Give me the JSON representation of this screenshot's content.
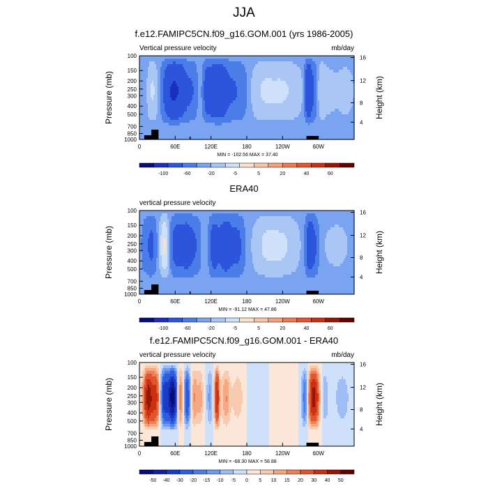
{
  "page": {
    "title": "JJA"
  },
  "chart_data": [
    {
      "type": "heatmap",
      "title": "f.e12.FAMIPC5CN.f09_g16.GOM.001 (yrs 1986-2005)",
      "left_label": "Vertical pressure velocity",
      "right_label": "mb/day",
      "ylabel": "Pressure (mb)",
      "ylabel_right": "Height (km)",
      "xticks": [
        "0",
        "60E",
        "120E",
        "180",
        "120W",
        "60W"
      ],
      "yticks": [
        "100",
        "150",
        "200",
        "250",
        "300",
        "400",
        "500",
        "700",
        "850",
        "1000"
      ],
      "yticks_right": [
        "16",
        "12",
        "8",
        "4"
      ],
      "xlim": [
        0,
        360
      ],
      "ylim": [
        1000,
        100
      ],
      "stats": "MIN = -102.56   MAX = 37.40",
      "levels": [
        "-100",
        "-60",
        "-20",
        "-5",
        "5",
        "20",
        "40",
        "60"
      ],
      "colors": [
        "#0a0a7a",
        "#1a2ec0",
        "#2d55dc",
        "#4a7de8",
        "#7aa3f0",
        "#a9c6f5",
        "#cfe0fa",
        "#fbe0d0",
        "#f8c4a6",
        "#f4a07a",
        "#ec7b52",
        "#e2552e",
        "#c92f12",
        "#9a1408",
        "#640000"
      ],
      "features": [
        {
          "lon": 12,
          "val": -8,
          "w": 5
        },
        {
          "lon": 22,
          "val": 26,
          "w": 8
        },
        {
          "lon": 40,
          "val": 8,
          "w": 4
        },
        {
          "lon": 55,
          "val": -60,
          "w": 13
        },
        {
          "lon": 72,
          "val": -20,
          "w": 10
        },
        {
          "lon": 90,
          "val": -15,
          "w": 6
        },
        {
          "lon": 102,
          "val": 4,
          "w": 4
        },
        {
          "lon": 115,
          "val": -40,
          "w": 6
        },
        {
          "lon": 125,
          "val": -25,
          "w": 4
        },
        {
          "lon": 135,
          "val": -50,
          "w": 7
        },
        {
          "lon": 155,
          "val": -22,
          "w": 14
        },
        {
          "lon": 175,
          "val": -6,
          "w": 8
        },
        {
          "lon": 205,
          "val": 15,
          "w": 14
        },
        {
          "lon": 240,
          "val": 22,
          "w": 22
        },
        {
          "lon": 283,
          "val": -55,
          "w": 4
        },
        {
          "lon": 292,
          "val": -20,
          "w": 6
        },
        {
          "lon": 305,
          "val": 18,
          "w": 5
        },
        {
          "lon": 318,
          "val": 8,
          "w": 8
        },
        {
          "lon": 345,
          "val": 10,
          "w": 12
        }
      ]
    },
    {
      "type": "heatmap",
      "title": "ERA40",
      "left_label": "vertical pressure velocity",
      "right_label": "",
      "ylabel": "Pressure (mb)",
      "ylabel_right": "Height (km)",
      "xticks": [
        "0",
        "60E",
        "120E",
        "180",
        "120W",
        "60W"
      ],
      "yticks": [
        "100",
        "150",
        "200",
        "250",
        "300",
        "400",
        "500",
        "700",
        "850",
        "1000"
      ],
      "yticks_right": [
        "16",
        "12",
        "8",
        "4"
      ],
      "xlim": [
        0,
        360
      ],
      "ylim": [
        1000,
        100
      ],
      "stats": "MIN = -91.12   MAX = 47.86",
      "levels": [
        "-100",
        "-60",
        "-20",
        "-5",
        "5",
        "20",
        "40",
        "60"
      ],
      "colors": [
        "#0a0a7a",
        "#1a2ec0",
        "#2d55dc",
        "#4a7de8",
        "#7aa3f0",
        "#a9c6f5",
        "#cfe0fa",
        "#fbe0d0",
        "#f8c4a6",
        "#f4a07a",
        "#ec7b52",
        "#e2552e",
        "#c92f12",
        "#9a1408",
        "#640000"
      ],
      "features": [
        {
          "lon": 8,
          "val": -10,
          "w": 5
        },
        {
          "lon": 20,
          "val": -25,
          "w": 6
        },
        {
          "lon": 42,
          "val": 45,
          "w": 5
        },
        {
          "lon": 62,
          "val": -30,
          "w": 8
        },
        {
          "lon": 80,
          "val": -35,
          "w": 8
        },
        {
          "lon": 96,
          "val": -15,
          "w": 6
        },
        {
          "lon": 110,
          "val": 5,
          "w": 4
        },
        {
          "lon": 125,
          "val": -35,
          "w": 6
        },
        {
          "lon": 145,
          "val": -45,
          "w": 8
        },
        {
          "lon": 165,
          "val": -25,
          "w": 8
        },
        {
          "lon": 210,
          "val": 18,
          "w": 14
        },
        {
          "lon": 240,
          "val": 22,
          "w": 18
        },
        {
          "lon": 285,
          "val": -40,
          "w": 5
        },
        {
          "lon": 295,
          "val": -20,
          "w": 5
        },
        {
          "lon": 330,
          "val": 8,
          "w": 20
        }
      ]
    },
    {
      "type": "heatmap",
      "title": "f.e12.FAMIPC5CN.f09_g16.GOM.001 - ERA40",
      "left_label": "vertical pressure velocity",
      "right_label": "mb/day",
      "ylabel": "Pressure (mb)",
      "ylabel_right": "Height (km)",
      "xticks": [
        "0",
        "60E",
        "120E",
        "180",
        "120W",
        "60W"
      ],
      "yticks": [
        "100",
        "150",
        "200",
        "250",
        "300",
        "400",
        "500",
        "700",
        "850",
        "1000"
      ],
      "yticks_right": [
        "16",
        "12",
        "8",
        "4"
      ],
      "xlim": [
        0,
        360
      ],
      "ylim": [
        1000,
        100
      ],
      "stats": "MIN = -68.30   MAX = 58.88",
      "levels": [
        "-50",
        "-40",
        "-30",
        "-20",
        "-15",
        "-10",
        "-5",
        "0",
        "5",
        "10",
        "15",
        "20",
        "30",
        "40",
        "50"
      ],
      "colors": [
        "#0a0a7a",
        "#12209e",
        "#1a3cc4",
        "#2d5ddc",
        "#4a7de8",
        "#6f9af0",
        "#9fbdf5",
        "#cfe0fa",
        "#fbe6d8",
        "#f8cbb0",
        "#f4a882",
        "#ec8058",
        "#e0552e",
        "#c83010",
        "#961408",
        "#600000"
      ],
      "features": [
        {
          "lon": 15,
          "val": 45,
          "w": 6
        },
        {
          "lon": 28,
          "val": 30,
          "w": 5
        },
        {
          "lon": 42,
          "val": -35,
          "w": 5
        },
        {
          "lon": 56,
          "val": -55,
          "w": 6
        },
        {
          "lon": 68,
          "val": 25,
          "w": 4
        },
        {
          "lon": 80,
          "val": -30,
          "w": 4
        },
        {
          "lon": 92,
          "val": 15,
          "w": 4
        },
        {
          "lon": 102,
          "val": 12,
          "w": 4
        },
        {
          "lon": 118,
          "val": -12,
          "w": 4
        },
        {
          "lon": 130,
          "val": 40,
          "w": 3
        },
        {
          "lon": 145,
          "val": 15,
          "w": 5
        },
        {
          "lon": 165,
          "val": 8,
          "w": 8
        },
        {
          "lon": 200,
          "val": -5,
          "w": 12
        },
        {
          "lon": 240,
          "val": 5,
          "w": 14
        },
        {
          "lon": 278,
          "val": -25,
          "w": 4
        },
        {
          "lon": 292,
          "val": 45,
          "w": 7
        },
        {
          "lon": 310,
          "val": -10,
          "w": 5
        },
        {
          "lon": 340,
          "val": -8,
          "w": 10
        }
      ]
    }
  ]
}
